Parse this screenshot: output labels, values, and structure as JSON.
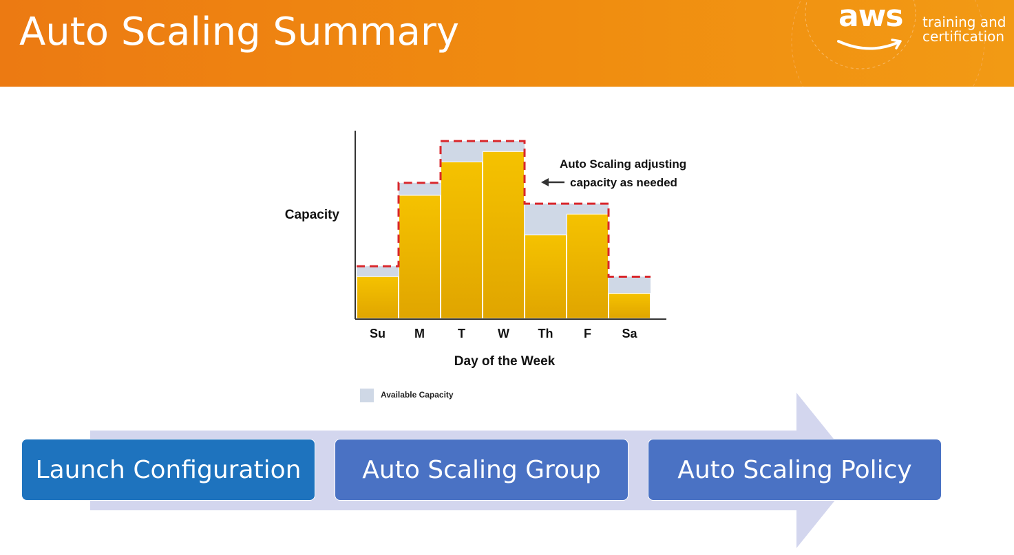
{
  "header": {
    "title": "Auto Scaling Summary",
    "logo_word": "aws",
    "logo_line1": "training and",
    "logo_line2": "certification",
    "background_color": "#f08c10"
  },
  "chart_data": {
    "type": "bar",
    "categories": [
      "Su",
      "M",
      "T",
      "W",
      "Th",
      "F",
      "Sa"
    ],
    "series": [
      {
        "values": [
          20,
          59,
          75,
          80,
          40,
          50,
          12
        ]
      }
    ],
    "capacity": [
      25,
      65,
      85,
      85,
      55,
      55,
      20
    ],
    "xlabel": "Day of the Week",
    "ylabel": "Capacity",
    "ylim": [
      0,
      90
    ],
    "annotation": [
      "Auto Scaling adjusting",
      "capacity as needed"
    ],
    "legend": {
      "label": "Available Capacity",
      "position": "bottom-left"
    },
    "colors": {
      "bar": "#f5c200",
      "capacity": "#cfd8e6",
      "capacity_line": "#d9262b"
    },
    "grid": false
  },
  "steps": [
    {
      "label": "Launch Configuration",
      "color": "#1e73be"
    },
    {
      "label": "Auto Scaling Group",
      "color": "#4a72c4"
    },
    {
      "label": "Auto Scaling Policy",
      "color": "#4a72c4"
    }
  ],
  "arrow_color": "#d3d6ee"
}
